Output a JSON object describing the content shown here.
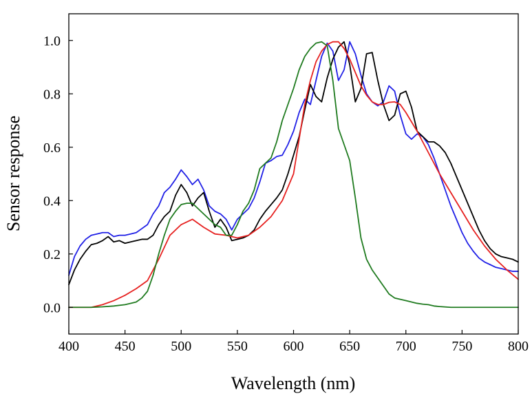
{
  "chart_data": {
    "type": "line",
    "title": "",
    "xlabel": "Wavelength (nm)",
    "ylabel": "Sensor response",
    "xlim": [
      400,
      800
    ],
    "ylim": [
      -0.1,
      1.1
    ],
    "xticks": [
      400,
      450,
      500,
      550,
      600,
      650,
      700,
      750,
      800
    ],
    "yticks": [
      0.0,
      0.2,
      0.4,
      0.6,
      0.8,
      1.0
    ],
    "ytick_labels": [
      "0.0",
      "0.2",
      "0.4",
      "0.6",
      "0.8",
      "1.0"
    ],
    "grid": false,
    "legend": "none",
    "series": [
      {
        "name": "blue",
        "color": "#1f1fe6",
        "x": [
          400,
          405,
          410,
          415,
          420,
          425,
          430,
          435,
          440,
          445,
          450,
          455,
          460,
          465,
          470,
          475,
          480,
          485,
          490,
          495,
          500,
          505,
          510,
          515,
          520,
          525,
          530,
          535,
          540,
          545,
          550,
          555,
          560,
          565,
          570,
          575,
          580,
          585,
          590,
          595,
          600,
          605,
          610,
          615,
          620,
          625,
          630,
          635,
          640,
          645,
          650,
          655,
          660,
          665,
          670,
          675,
          680,
          685,
          690,
          695,
          700,
          705,
          710,
          715,
          720,
          725,
          730,
          735,
          740,
          745,
          750,
          755,
          760,
          765,
          770,
          775,
          780,
          785,
          790,
          795,
          800
        ],
        "y": [
          0.12,
          0.19,
          0.23,
          0.255,
          0.27,
          0.275,
          0.28,
          0.28,
          0.265,
          0.27,
          0.27,
          0.275,
          0.28,
          0.295,
          0.31,
          0.35,
          0.38,
          0.43,
          0.45,
          0.48,
          0.515,
          0.49,
          0.46,
          0.48,
          0.44,
          0.38,
          0.36,
          0.35,
          0.33,
          0.29,
          0.33,
          0.35,
          0.37,
          0.41,
          0.47,
          0.54,
          0.55,
          0.565,
          0.57,
          0.61,
          0.66,
          0.73,
          0.78,
          0.76,
          0.85,
          0.94,
          0.99,
          0.96,
          0.85,
          0.89,
          0.995,
          0.95,
          0.87,
          0.8,
          0.77,
          0.755,
          0.77,
          0.83,
          0.81,
          0.72,
          0.65,
          0.63,
          0.65,
          0.64,
          0.61,
          0.56,
          0.5,
          0.44,
          0.38,
          0.33,
          0.28,
          0.24,
          0.21,
          0.185,
          0.17,
          0.16,
          0.15,
          0.145,
          0.14,
          0.135,
          0.135
        ]
      },
      {
        "name": "black",
        "color": "#000000",
        "x": [
          400,
          405,
          410,
          415,
          420,
          425,
          430,
          435,
          440,
          445,
          450,
          455,
          460,
          465,
          470,
          475,
          480,
          485,
          490,
          495,
          500,
          505,
          510,
          515,
          520,
          525,
          530,
          535,
          540,
          545,
          550,
          555,
          560,
          565,
          570,
          575,
          580,
          585,
          590,
          595,
          600,
          605,
          610,
          615,
          620,
          625,
          630,
          635,
          640,
          645,
          650,
          655,
          660,
          665,
          670,
          675,
          680,
          685,
          690,
          695,
          700,
          705,
          710,
          715,
          720,
          725,
          730,
          735,
          740,
          745,
          750,
          755,
          760,
          765,
          770,
          775,
          780,
          785,
          790,
          795,
          800
        ],
        "y": [
          0.085,
          0.14,
          0.18,
          0.21,
          0.235,
          0.24,
          0.25,
          0.265,
          0.245,
          0.25,
          0.24,
          0.245,
          0.25,
          0.255,
          0.255,
          0.27,
          0.31,
          0.34,
          0.36,
          0.42,
          0.46,
          0.43,
          0.38,
          0.41,
          0.43,
          0.36,
          0.3,
          0.33,
          0.3,
          0.25,
          0.255,
          0.26,
          0.27,
          0.29,
          0.33,
          0.36,
          0.385,
          0.41,
          0.44,
          0.5,
          0.57,
          0.64,
          0.74,
          0.835,
          0.79,
          0.77,
          0.86,
          0.93,
          0.975,
          0.995,
          0.91,
          0.77,
          0.82,
          0.95,
          0.955,
          0.85,
          0.76,
          0.7,
          0.72,
          0.8,
          0.81,
          0.75,
          0.66,
          0.64,
          0.62,
          0.62,
          0.605,
          0.58,
          0.54,
          0.49,
          0.44,
          0.39,
          0.34,
          0.29,
          0.25,
          0.22,
          0.2,
          0.19,
          0.185,
          0.18,
          0.17
        ]
      },
      {
        "name": "red",
        "color": "#e6201f",
        "x": [
          400,
          410,
          420,
          430,
          440,
          450,
          460,
          470,
          480,
          490,
          500,
          510,
          520,
          530,
          540,
          550,
          560,
          570,
          580,
          590,
          600,
          605,
          610,
          615,
          620,
          625,
          630,
          635,
          640,
          645,
          650,
          655,
          660,
          665,
          670,
          675,
          680,
          685,
          690,
          695,
          700,
          710,
          720,
          730,
          740,
          750,
          760,
          770,
          780,
          790,
          800
        ],
        "y": [
          0.0,
          0.0,
          0.0,
          0.01,
          0.025,
          0.045,
          0.07,
          0.1,
          0.18,
          0.27,
          0.31,
          0.33,
          0.3,
          0.275,
          0.27,
          0.26,
          0.27,
          0.3,
          0.34,
          0.4,
          0.5,
          0.63,
          0.76,
          0.85,
          0.92,
          0.96,
          0.985,
          0.995,
          0.995,
          0.97,
          0.93,
          0.88,
          0.83,
          0.795,
          0.77,
          0.76,
          0.76,
          0.768,
          0.77,
          0.76,
          0.73,
          0.66,
          0.58,
          0.5,
          0.43,
          0.36,
          0.29,
          0.23,
          0.18,
          0.14,
          0.105
        ]
      },
      {
        "name": "green",
        "color": "#1e7a1e",
        "x": [
          400,
          410,
          420,
          430,
          440,
          450,
          455,
          460,
          465,
          470,
          475,
          480,
          485,
          490,
          495,
          500,
          505,
          510,
          515,
          520,
          525,
          530,
          535,
          540,
          545,
          550,
          555,
          560,
          565,
          570,
          575,
          580,
          585,
          590,
          595,
          600,
          605,
          610,
          615,
          620,
          625,
          630,
          635,
          640,
          645,
          650,
          655,
          660,
          665,
          670,
          675,
          680,
          685,
          690,
          695,
          700,
          705,
          710,
          715,
          720,
          725,
          730,
          740,
          750,
          760,
          770,
          780,
          790,
          800
        ],
        "y": [
          0.0,
          0.0,
          0.0,
          0.002,
          0.005,
          0.01,
          0.015,
          0.02,
          0.035,
          0.06,
          0.12,
          0.2,
          0.27,
          0.33,
          0.36,
          0.385,
          0.39,
          0.39,
          0.37,
          0.35,
          0.33,
          0.31,
          0.3,
          0.27,
          0.27,
          0.31,
          0.36,
          0.39,
          0.44,
          0.52,
          0.54,
          0.56,
          0.62,
          0.7,
          0.76,
          0.82,
          0.89,
          0.94,
          0.97,
          0.99,
          0.995,
          0.98,
          0.85,
          0.67,
          0.61,
          0.55,
          0.41,
          0.26,
          0.18,
          0.14,
          0.11,
          0.08,
          0.05,
          0.035,
          0.03,
          0.025,
          0.02,
          0.015,
          0.012,
          0.01,
          0.005,
          0.003,
          0.0,
          0.0,
          0.0,
          0.0,
          0.0,
          0.0,
          0.0
        ]
      }
    ]
  }
}
